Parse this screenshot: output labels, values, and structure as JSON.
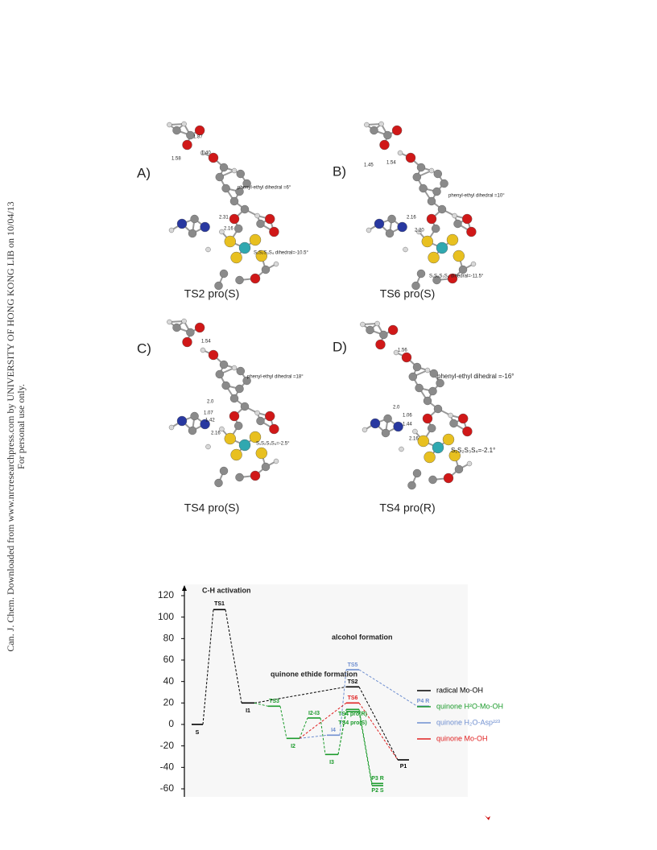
{
  "watermark": {
    "line1": "Can. J. Chem. Downloaded from www.nrcresearchpress.com by UNIVERSITY OF HONG KONG LIB on 10/04/13",
    "line2": "For personal use only."
  },
  "panels": [
    {
      "letter": "A)",
      "caption": "TS2 pro(S)",
      "labels": [
        "1.87",
        "1.58",
        "1.40",
        "phenyl-ethyl dihedral =6°",
        "2.31",
        "2.16",
        "S₁S₂S₃S₄ dihedral=-10.5°"
      ]
    },
    {
      "letter": "B)",
      "caption": "TS6 pro(S)",
      "labels": [
        "1.45",
        "1.54",
        "phenyl-ethyl dihedral =10°",
        "2.16",
        "2.20",
        "S₁S₂S₃S₄ dihedral=-11.5°"
      ]
    },
    {
      "letter": "C)",
      "caption": "TS4 pro(S)",
      "labels": [
        "1.54",
        "phenyl-ethyl dihedral =18°",
        "2.0",
        "1.07",
        "1.42",
        "2.16",
        "S₁S₂S₃S₄=-2.5°"
      ]
    },
    {
      "letter": "D)",
      "caption": "TS4 pro(R)",
      "labels": [
        "1.56",
        "phenyl-ethyl dihedral =-16°",
        "2.0",
        "1.06",
        "1.44",
        "2.16",
        "S₁S₂S₃S₄=-2.1°"
      ]
    }
  ],
  "energy_diagram": {
    "ylim": [
      -60,
      120
    ],
    "yticks": [
      -60,
      -40,
      -20,
      0,
      20,
      40,
      60,
      80,
      100,
      120
    ],
    "annotations": [
      "C-H activation",
      "alcohol formation",
      "quinone ethide formation"
    ],
    "levels": [
      {
        "label": "S",
        "value": 0,
        "color": "#000000"
      },
      {
        "label": "TS1",
        "value": 107,
        "color": "#000000"
      },
      {
        "label": "I1",
        "value": 20,
        "color": "#000000"
      },
      {
        "label": "TS3",
        "value": 17,
        "color": "#1a9a2a"
      },
      {
        "label": "I2",
        "value": -13,
        "color": "#1a9a2a"
      },
      {
        "label": "I2-I3",
        "value": 6,
        "color": "#1a9a2a"
      },
      {
        "label": "I3",
        "value": -28,
        "color": "#1a9a2a"
      },
      {
        "label": "I4",
        "value": -10,
        "color": "#6f8fd0"
      },
      {
        "label": "TS5",
        "value": 51,
        "color": "#6f8fd0"
      },
      {
        "label": "TS2",
        "value": 35,
        "color": "#000000"
      },
      {
        "label": "TS6",
        "value": 20,
        "color": "#e02020"
      },
      {
        "label": "TS4 pro(R)",
        "value": 14,
        "color": "#1a9a2a"
      },
      {
        "label": "TS4 pro(S)",
        "value": 12,
        "color": "#1a9a2a"
      },
      {
        "label": "P4 R",
        "value": 17,
        "color": "#6f8fd0"
      },
      {
        "label": "P1",
        "value": -33,
        "color": "#000000"
      },
      {
        "label": "P3 R",
        "value": -55,
        "color": "#1a9a2a"
      },
      {
        "label": "P2 S",
        "value": -57,
        "color": "#1a9a2a"
      }
    ],
    "legend": [
      {
        "name": "radical Mo-OH",
        "color": "#000000"
      },
      {
        "name": "quinone H²O-Mo-OH",
        "color": "#1a9a2a"
      },
      {
        "name": "quinone H₂O-Asp²²³",
        "color": "#6f8fd0"
      },
      {
        "name": "quinone Mo-OH",
        "color": "#e02020"
      }
    ]
  }
}
